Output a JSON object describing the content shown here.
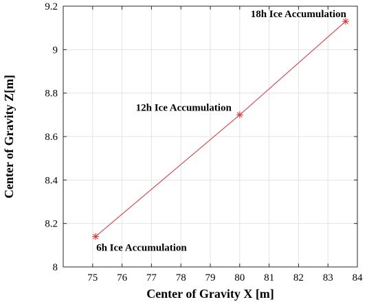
{
  "chart_data": {
    "type": "line",
    "title": "",
    "xlabel": "Center of Gravity X [m]",
    "ylabel": "Center of Gravity Z[m]",
    "xlim": [
      74,
      84
    ],
    "ylim": [
      8,
      9.2
    ],
    "xticks": [
      "75",
      "76",
      "77",
      "78",
      "79",
      "80",
      "81",
      "82",
      "83",
      "84"
    ],
    "yticks": [
      "8",
      "8.2",
      "8.4",
      "8.6",
      "8.8",
      "9",
      "9.2"
    ],
    "grid": true,
    "series": [
      {
        "color": "#e8262a",
        "marker": "asterisk",
        "points": [
          {
            "x": 75.1,
            "y": 8.14
          },
          {
            "x": 80.0,
            "y": 8.7
          },
          {
            "x": 83.6,
            "y": 9.13
          }
        ]
      }
    ],
    "annotations": [
      {
        "text": "6h Ice Accumulation",
        "x": 75.1,
        "y": 8.14
      },
      {
        "text": "12h Ice Accumulation",
        "x": 80.0,
        "y": 8.7
      },
      {
        "text": "18h Ice Accumulation",
        "x": 83.6,
        "y": 9.13
      }
    ]
  }
}
